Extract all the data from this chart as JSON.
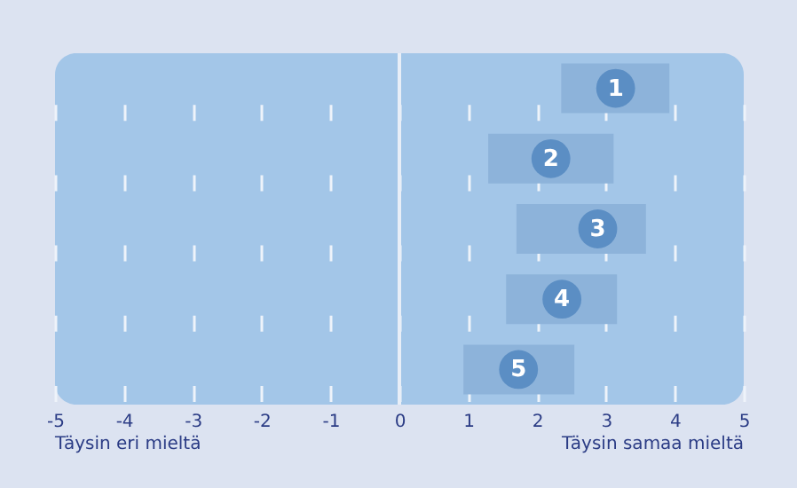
{
  "chart_data": {
    "type": "scatter",
    "orientation": "horizontal",
    "categories": [
      "1",
      "2",
      "3",
      "4",
      "5"
    ],
    "values": [
      3.14,
      2.2,
      2.88,
      2.36,
      1.73
    ],
    "errors": [
      [
        2.35,
        3.92
      ],
      [
        1.29,
        3.11
      ],
      [
        1.7,
        3.58
      ],
      [
        1.55,
        3.16
      ],
      [
        0.93,
        2.54
      ]
    ],
    "color": "#5b8ec4",
    "marker": "circle",
    "xlim": [
      -5,
      5
    ],
    "xticks": [
      -5,
      -4,
      -3,
      -2,
      -1,
      0,
      1,
      2,
      3,
      4,
      5
    ],
    "ref_lines": [
      {
        "axis": "x",
        "value": 0,
        "color": "#e8eef7"
      }
    ],
    "grid": "x",
    "annotations": [
      "Täysin eri mieltä",
      "Täysin samaa mieltä"
    ]
  }
}
